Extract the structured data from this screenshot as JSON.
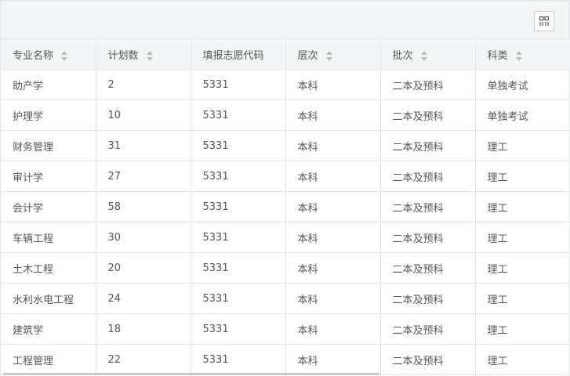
{
  "toolbar": {
    "columns_button_icon": "columns-grid-icon"
  },
  "table": {
    "headers": [
      {
        "label": "专业名称",
        "sortable": true
      },
      {
        "label": "计划数",
        "sortable": true
      },
      {
        "label": "填报志愿代码",
        "sortable": false
      },
      {
        "label": "层次",
        "sortable": true
      },
      {
        "label": "批次",
        "sortable": true
      },
      {
        "label": "科类",
        "sortable": true
      }
    ],
    "rows": [
      [
        "助产学",
        "2",
        "5331",
        "本科",
        "二本及预科",
        "单独考试"
      ],
      [
        "护理学",
        "10",
        "5331",
        "本科",
        "二本及预科",
        "单独考试"
      ],
      [
        "财务管理",
        "31",
        "5331",
        "本科",
        "二本及预科",
        "理工"
      ],
      [
        "审计学",
        "27",
        "5331",
        "本科",
        "二本及预科",
        "理工"
      ],
      [
        "会计学",
        "58",
        "5331",
        "本科",
        "二本及预科",
        "理工"
      ],
      [
        "车辆工程",
        "30",
        "5331",
        "本科",
        "二本及预科",
        "理工"
      ],
      [
        "土木工程",
        "20",
        "5331",
        "本科",
        "二本及预科",
        "理工"
      ],
      [
        "水利水电工程",
        "24",
        "5331",
        "本科",
        "二本及预科",
        "理工"
      ],
      [
        "建筑学",
        "18",
        "5331",
        "本科",
        "二本及预科",
        "理工"
      ],
      [
        "工程管理",
        "22",
        "5331",
        "本科",
        "二本及预科",
        "理工"
      ]
    ]
  }
}
